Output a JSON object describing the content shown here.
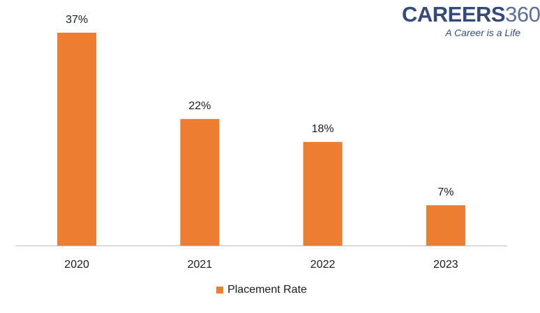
{
  "brand": {
    "name_letters": "CAREERS",
    "name_number": "360",
    "tagline": "A Career is a Life"
  },
  "colors": {
    "bar": "#ed7d31",
    "axis": "#bfbfbf",
    "text": "#1a1a1a"
  },
  "chart_data": {
    "type": "bar",
    "categories": [
      "2020",
      "2021",
      "2022",
      "2023"
    ],
    "series": [
      {
        "name": "Placement Rate",
        "values": [
          37,
          22,
          18,
          7
        ],
        "labels": [
          "37%",
          "22%",
          "18%",
          "7%"
        ]
      }
    ],
    "ylim": [
      0,
      37
    ],
    "grid": false,
    "legend_position": "bottom"
  }
}
